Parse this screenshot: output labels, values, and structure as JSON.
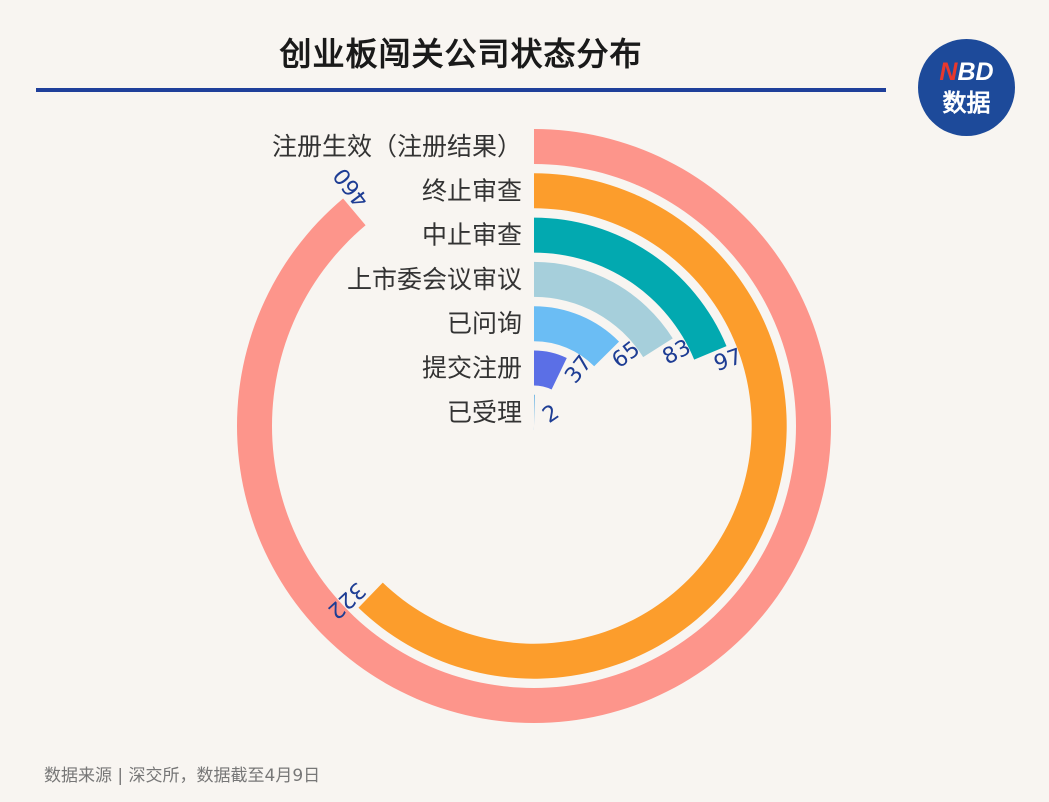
{
  "header": {
    "title": "创业板闯关公司状态分布"
  },
  "logo": {
    "brand_first": "N",
    "brand_rest": "BD",
    "subtitle": "数据"
  },
  "footer": {
    "source": "数据来源 | 深交所，数据截至4月9日"
  },
  "chart_data": {
    "type": "radial-bar",
    "title": "创业板闯关公司状态分布",
    "max": 460,
    "categories": [
      "注册生效（注册结果）",
      "终止审查",
      "中止审查",
      "上市委会议审议",
      "已问询",
      "提交注册",
      "已受理"
    ],
    "values": [
      460,
      322,
      97,
      83,
      65,
      37,
      2
    ],
    "colors": [
      "#fd958b",
      "#fc9d2c",
      "#02a9b0",
      "#a6cfdb",
      "#6bbdf4",
      "#5b6fe6",
      "#4fa7e0"
    ],
    "label_color": "#1e3d94"
  }
}
